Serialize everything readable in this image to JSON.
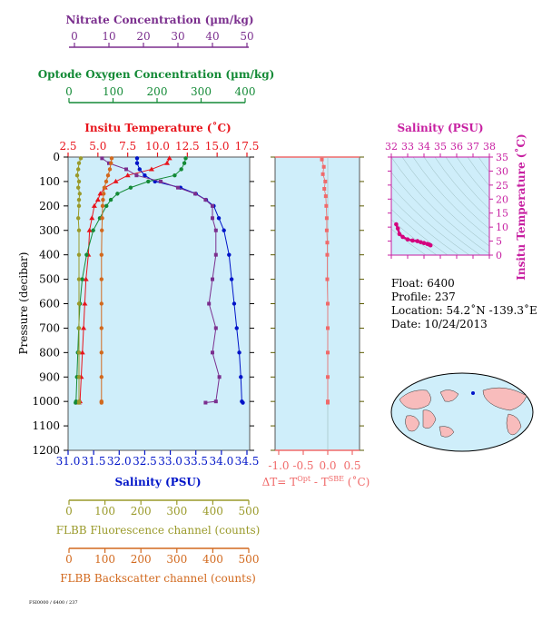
{
  "colors": {
    "nitrate": "#7b2f8e",
    "oxygen": "#138a36",
    "temperature": "#e8141c",
    "salinity": "#0014c8",
    "fluorescence": "#9a9a2a",
    "backscatter": "#d2691e",
    "delta": "#f06a6a",
    "ts": "#d4007e",
    "panel_bg": "#cfeefa",
    "map_ocean": "#cfeefa",
    "map_land": "#f8bcbc"
  },
  "axes": {
    "nitrate": {
      "label": "Nitrate Concentration (µm/kg)",
      "ticks": [
        "0",
        "10",
        "20",
        "30",
        "40",
        "50"
      ]
    },
    "oxygen": {
      "label": "Optode Oxygen Concentration (µm/kg)",
      "ticks": [
        "0",
        "100",
        "200",
        "300",
        "400"
      ]
    },
    "temperature": {
      "label": "Insitu Temperature (˚C)",
      "ticks": [
        "2.5",
        "5.0",
        "7.5",
        "10.0",
        "12.5",
        "15.0",
        "17.5"
      ]
    },
    "salinity": {
      "label": "Salinity (PSU)",
      "ticks": [
        "31.0",
        "31.5",
        "32.0",
        "32.5",
        "33.0",
        "33.5",
        "34.0",
        "34.5"
      ]
    },
    "fluorescence": {
      "label": "FLBB Fluorescence channel (counts)",
      "ticks": [
        "0",
        "100",
        "200",
        "300",
        "400",
        "500"
      ]
    },
    "backscatter": {
      "label": "FLBB Backscatter channel (counts)",
      "ticks": [
        "0",
        "100",
        "200",
        "300",
        "400",
        "500"
      ]
    },
    "pressure": {
      "label": "Pressure (decibar)",
      "ticks": [
        "0",
        "100",
        "200",
        "300",
        "400",
        "500",
        "600",
        "700",
        "800",
        "900",
        "1000",
        "1100",
        "1200"
      ]
    },
    "delta": {
      "label_main": "ΔT= T",
      "label_sup1": "Opt",
      "label_mid": " - T",
      "label_sup2": "SBE",
      "label_end": " (˚C)",
      "ticks": [
        "-1.0",
        "-0.5",
        "0.0",
        "0.5"
      ]
    },
    "ts_salinity": {
      "label": "Salinity (PSU)",
      "ticks": [
        "32",
        "33",
        "34",
        "35",
        "36",
        "37",
        "38"
      ]
    },
    "ts_temperature": {
      "label": "Insitu Temperature (˚C)",
      "ticks": [
        "0",
        "5",
        "10",
        "15",
        "20",
        "25",
        "30",
        "35"
      ]
    }
  },
  "info": {
    "float": "Float:  6400",
    "profile": "Profile:  237",
    "location": "Location:  54.2˚N  -139.3˚E",
    "date": "Date:  10/24/2013"
  },
  "footer": "FSI0000 / 6400 / 237",
  "chart_data": [
    {
      "type": "line",
      "panel": "profiles",
      "y_name": "pressure",
      "ylim": [
        1200,
        0
      ],
      "series": [
        {
          "name": "temperature",
          "xlim": [
            2.5,
            17.5
          ],
          "x": [
            11.0,
            10.8,
            9.5,
            7.5,
            6.5,
            5.6,
            5.2,
            5.0,
            4.7,
            4.5,
            4.3,
            4.2,
            4.0,
            3.9,
            3.8,
            3.7,
            3.6,
            3.5,
            3.4
          ],
          "y": [
            5,
            25,
            50,
            75,
            100,
            125,
            150,
            175,
            200,
            250,
            300,
            400,
            500,
            600,
            700,
            800,
            900,
            1000,
            1005
          ]
        },
        {
          "name": "salinity",
          "xlim": [
            31.0,
            34.5
          ],
          "x": [
            32.35,
            32.35,
            32.4,
            32.5,
            32.7,
            33.2,
            33.5,
            33.7,
            33.85,
            33.95,
            34.05,
            34.15,
            34.2,
            34.25,
            34.3,
            34.35,
            34.38,
            34.4,
            34.42
          ],
          "y": [
            5,
            25,
            50,
            75,
            100,
            125,
            150,
            175,
            200,
            250,
            300,
            400,
            500,
            600,
            700,
            800,
            900,
            1000,
            1005
          ]
        },
        {
          "name": "oxygen",
          "xlim": [
            0,
            400
          ],
          "x": [
            265,
            262,
            255,
            240,
            180,
            140,
            110,
            95,
            85,
            70,
            55,
            40,
            30,
            25,
            22,
            20,
            18,
            16,
            15
          ],
          "y": [
            5,
            25,
            50,
            75,
            100,
            125,
            150,
            175,
            200,
            250,
            300,
            400,
            500,
            600,
            700,
            800,
            900,
            1000,
            1005
          ]
        },
        {
          "name": "nitrate",
          "xlim": [
            0,
            50
          ],
          "x": [
            8,
            10,
            15,
            18,
            25,
            30,
            35,
            38,
            40,
            40,
            41,
            41,
            40,
            39,
            41,
            40,
            42,
            41,
            38
          ],
          "y": [
            5,
            25,
            50,
            75,
            100,
            125,
            150,
            175,
            200,
            250,
            300,
            400,
            500,
            600,
            700,
            800,
            900,
            1000,
            1005
          ]
        },
        {
          "name": "fluorescence",
          "xlim": [
            0,
            500
          ],
          "x": [
            35,
            30,
            28,
            25,
            30,
            28,
            32,
            30,
            30,
            28,
            30,
            30,
            30,
            30,
            30,
            30,
            30,
            30,
            30
          ],
          "y": [
            5,
            25,
            50,
            75,
            100,
            125,
            150,
            175,
            200,
            250,
            300,
            400,
            500,
            600,
            700,
            800,
            900,
            1000,
            1005
          ]
        },
        {
          "name": "backscatter",
          "xlim": [
            0,
            500
          ],
          "x": [
            120,
            118,
            115,
            110,
            105,
            100,
            98,
            96,
            95,
            94,
            93,
            92,
            92,
            92,
            92,
            92,
            92,
            92,
            92
          ],
          "y": [
            5,
            25,
            50,
            75,
            100,
            125,
            150,
            175,
            200,
            250,
            300,
            400,
            500,
            600,
            700,
            800,
            900,
            1000,
            1005
          ]
        }
      ]
    },
    {
      "type": "scatter",
      "panel": "delta_t",
      "xlim": [
        -1.0,
        0.5
      ],
      "ylim": [
        1200,
        0
      ],
      "x": [
        -0.12,
        -0.08,
        -0.1,
        -0.05,
        -0.07,
        -0.04,
        -0.03,
        -0.02,
        -0.02,
        -0.01,
        -0.01,
        -0.01,
        0.0,
        0.0,
        0.0,
        0.0,
        0.0,
        0.0
      ],
      "y": [
        10,
        40,
        70,
        100,
        130,
        160,
        200,
        250,
        300,
        350,
        400,
        500,
        600,
        700,
        800,
        900,
        1000,
        1005
      ]
    },
    {
      "type": "scatter",
      "panel": "t_s",
      "xlabel": "Salinity (PSU)",
      "ylabel": "Insitu Temperature (˚C)",
      "xlim": [
        32,
        38
      ],
      "ylim": [
        0,
        35
      ],
      "x": [
        32.3,
        32.4,
        32.5,
        32.7,
        33.0,
        33.3,
        33.6,
        33.8,
        34.0,
        34.2,
        34.3,
        34.4
      ],
      "y": [
        11.0,
        9.5,
        7.5,
        6.5,
        5.6,
        5.2,
        5.0,
        4.6,
        4.3,
        4.0,
        3.8,
        3.5
      ]
    }
  ]
}
